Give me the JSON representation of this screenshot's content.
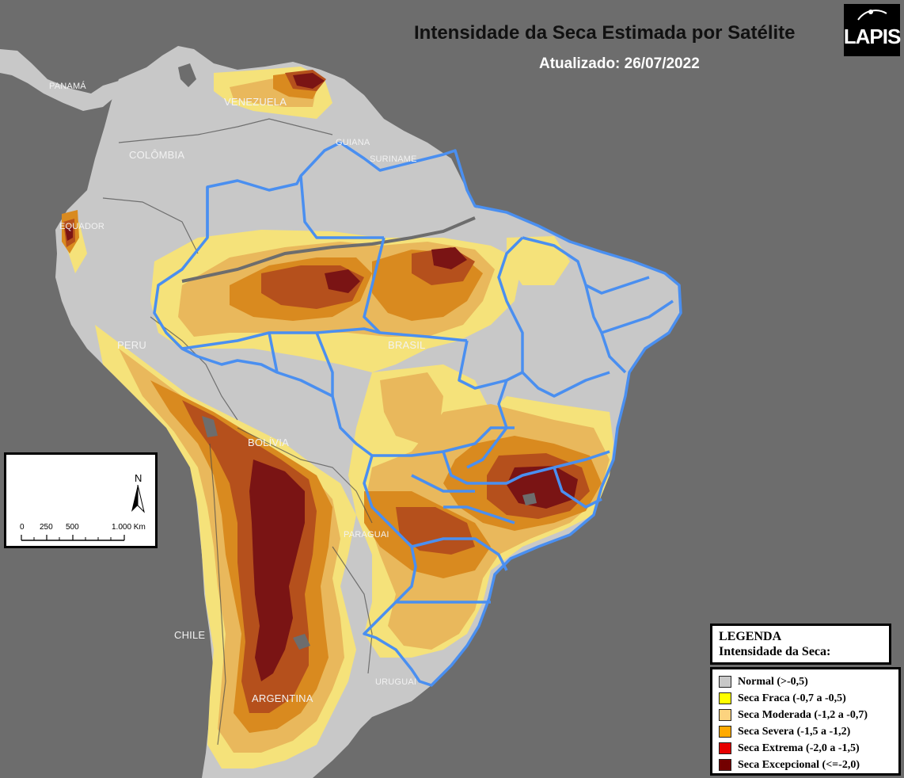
{
  "title": "Intensidade da Seca Estimada por Satélite",
  "subtitle": "Atualizado: 26/07/2022",
  "logo": {
    "text": "LAPIS"
  },
  "country_labels": {
    "panama": "PANAMÁ",
    "venezuela": "VENEZUELA",
    "colombia": "COLÔMBIA",
    "guiana": "GUIANA",
    "suriname": "SURINAME",
    "equador": "EQUADOR",
    "peru": "PERU",
    "brasil": "BRASIL",
    "bolivia": "BOLÍVIA",
    "paraguai": "PARAGUAI",
    "chile": "CHILE",
    "uruguai": "URUGUAI",
    "argentina": "ARGENTINA"
  },
  "scale_bar": {
    "north": "N",
    "labels": [
      "0",
      "250",
      "500",
      "1.000 Km"
    ]
  },
  "legend": {
    "title_line1": "LEGENDA",
    "title_line2": "Intensidade da Seca:",
    "items": [
      {
        "label": "Normal (>-0,5)",
        "color": "#c8c8c8"
      },
      {
        "label": "Seca Fraca (-0,7 a -0,5)",
        "color": "#ffff00"
      },
      {
        "label": "Seca Moderada (-1,2 a -0,7)",
        "color": "#fcd37f"
      },
      {
        "label": "Seca Severa (-1,5 a -1,2)",
        "color": "#ffaa00"
      },
      {
        "label": "Seca Extrema (-2,0 a -1,5)",
        "color": "#e60000"
      },
      {
        "label": "Seca Excepcional (<=-2,0)",
        "color": "#730000"
      }
    ]
  },
  "colors": {
    "ocean": "#6d6d6d",
    "land_normal": "#c8c8c8",
    "weak": "#f5e27a",
    "moderate": "#e9b85c",
    "severe": "#d98a1f",
    "extreme": "#b5501c",
    "exceptional": "#7a1414",
    "state_borders": "#4a8ff0"
  }
}
